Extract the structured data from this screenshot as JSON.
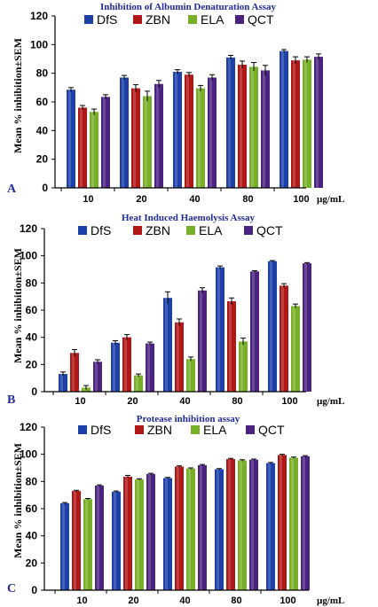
{
  "colors": {
    "DfS": "#1c3fa8",
    "ZBN": "#b01818",
    "ELA": "#77b028",
    "QCT": "#4a2380",
    "title": "#1f2a9c"
  },
  "chart_data": [
    {
      "type": "bar",
      "panel": "A",
      "title": "Inhibition of Albumin Denaturation Assay",
      "ylabel": "Mean  % inhibition±SEM",
      "xlabel": "",
      "unit_label": "µg/mL",
      "categories": [
        "10",
        "20",
        "40",
        "80",
        "100"
      ],
      "ylim": [
        0,
        120
      ],
      "yticks": [
        0,
        20,
        40,
        60,
        80,
        100,
        120
      ],
      "legend_position": "top",
      "series": [
        {
          "name": "DfS",
          "values": [
            68.5,
            77,
            81,
            91,
            95.5
          ],
          "errors": [
            1.5,
            1.5,
            1.5,
            1.5,
            1
          ]
        },
        {
          "name": "ZBN",
          "values": [
            56,
            69.5,
            79,
            86,
            89
          ],
          "errors": [
            1.5,
            2.5,
            1.5,
            2.5,
            2.5
          ]
        },
        {
          "name": "ELA",
          "values": [
            53,
            64,
            69.5,
            84.5,
            89.5
          ],
          "errors": [
            2,
            3.5,
            2,
            3,
            2
          ]
        },
        {
          "name": "QCT",
          "values": [
            63.5,
            72.5,
            77,
            82,
            91.5
          ],
          "errors": [
            1.5,
            2.5,
            2,
            3.5,
            2
          ]
        }
      ]
    },
    {
      "type": "bar",
      "panel": "B",
      "title": "Heat Induced Haemolysis Assay",
      "ylabel": "Mean  % inhibition±SEM",
      "xlabel": "",
      "unit_label": "µg/mL",
      "categories": [
        "10",
        "20",
        "40",
        "80",
        "100"
      ],
      "ylim": [
        0,
        120
      ],
      "yticks": [
        0,
        20,
        40,
        60,
        80,
        100,
        120
      ],
      "legend_position": "top",
      "series": [
        {
          "name": "DfS",
          "values": [
            13,
            36,
            69,
            91.5,
            96
          ],
          "errors": [
            1.5,
            1.5,
            4.5,
            1,
            0.5
          ]
        },
        {
          "name": "ZBN",
          "values": [
            28.5,
            40,
            51,
            66.5,
            78
          ],
          "errors": [
            2.5,
            2,
            2.5,
            2.5,
            1.5
          ]
        },
        {
          "name": "ELA",
          "values": [
            3,
            12,
            24,
            37,
            63
          ],
          "errors": [
            1.5,
            1,
            1.5,
            2.5,
            1.5
          ]
        },
        {
          "name": "QCT",
          "values": [
            22,
            35.5,
            74.5,
            88.5,
            94.5
          ],
          "errors": [
            1.5,
            1,
            2,
            0.5,
            0.5
          ]
        }
      ]
    },
    {
      "type": "bar",
      "panel": "C",
      "title": "Protease inhibition assay",
      "ylabel": "Mean  % inhibition±SEM",
      "xlabel": "",
      "unit_label": "µg/mL",
      "categories": [
        "10",
        "20",
        "40",
        "80",
        "100"
      ],
      "ylim": [
        0,
        120
      ],
      "yticks": [
        0,
        20,
        40,
        60,
        80,
        100,
        120
      ],
      "legend_position": "top",
      "series": [
        {
          "name": "DfS",
          "values": [
            64,
            72.5,
            82.5,
            89,
            93.5
          ],
          "errors": [
            0.5,
            0.5,
            0.5,
            0.5,
            0.5
          ]
        },
        {
          "name": "ZBN",
          "values": [
            73,
            83.5,
            91,
            96.5,
            99.5
          ],
          "errors": [
            0.5,
            1,
            0.5,
            0.5,
            0.5
          ]
        },
        {
          "name": "ELA",
          "values": [
            67,
            81.5,
            89.5,
            95.5,
            97.5
          ],
          "errors": [
            0.5,
            0.5,
            0.5,
            0.5,
            0.5
          ]
        },
        {
          "name": "QCT",
          "values": [
            77,
            85.5,
            92,
            96,
            98.5
          ],
          "errors": [
            0.5,
            0.5,
            0.5,
            0.5,
            0.5
          ]
        }
      ]
    }
  ]
}
